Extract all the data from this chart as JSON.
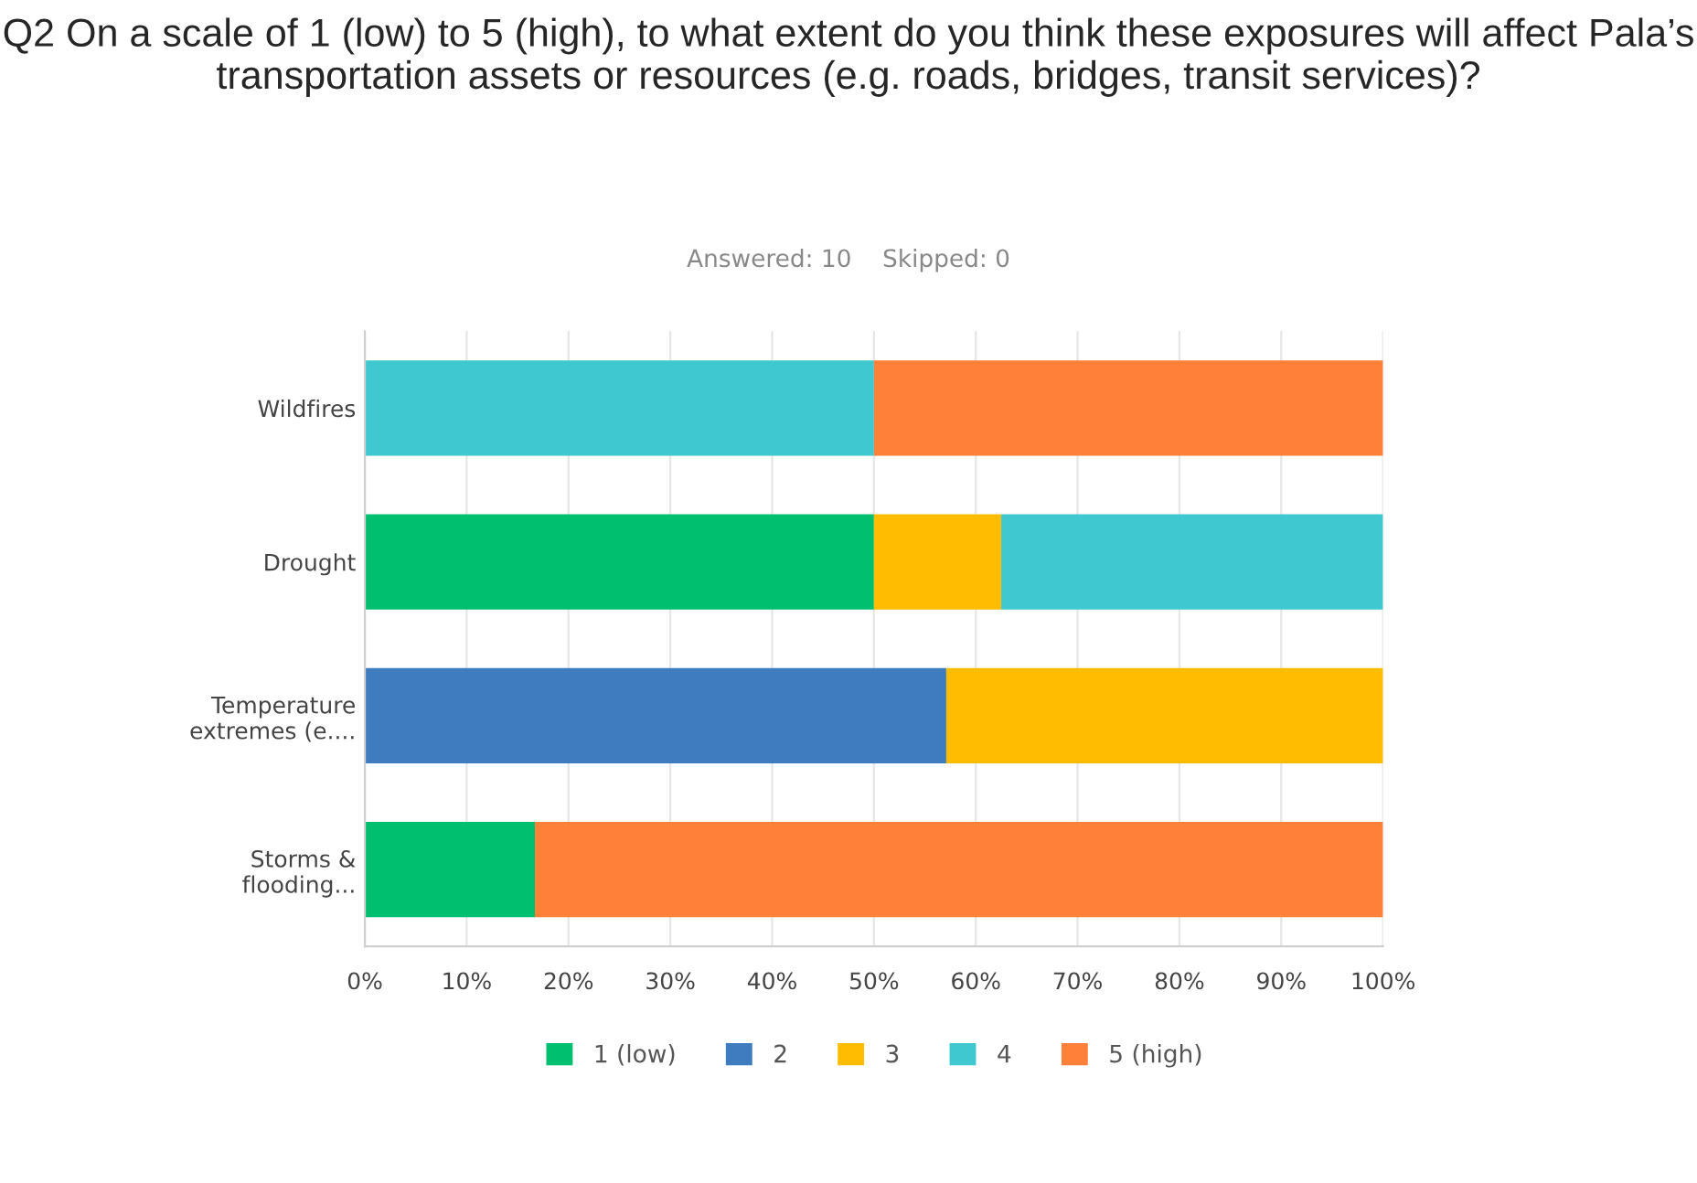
{
  "chart_data": {
    "type": "bar",
    "orientation": "horizontal",
    "stacked": true,
    "title": "Q2 On a scale of 1 (low) to 5 (high), to what extent do you think these exposures will affect Pala’s transportation assets or resources (e.g. roads, bridges, transit services)?",
    "subtitle": "Answered: 10    Skipped: 0",
    "categories": [
      "Wildfires",
      "Drought",
      "Temperature\nextremes (e....",
      "Storms &\nflooding..."
    ],
    "series": [
      {
        "name": "1 (low)",
        "color": "#00bf6f",
        "values": [
          0,
          50,
          0,
          16.7
        ]
      },
      {
        "name": "2",
        "color": "#3e7bbf",
        "values": [
          0,
          0,
          57.1,
          0
        ]
      },
      {
        "name": "3",
        "color": "#ffbc00",
        "values": [
          0,
          12.5,
          42.9,
          0
        ]
      },
      {
        "name": "4",
        "color": "#40c8d0",
        "values": [
          50,
          37.5,
          0,
          0
        ]
      },
      {
        "name": "5 (high)",
        "color": "#ff8039",
        "values": [
          50,
          0,
          0,
          83.3
        ]
      }
    ],
    "xlim": [
      0,
      100
    ],
    "xticks": [
      {
        "value": 0,
        "label": "0%"
      },
      {
        "value": 10,
        "label": "10%"
      },
      {
        "value": 20,
        "label": "20%"
      },
      {
        "value": 30,
        "label": "30%"
      },
      {
        "value": 40,
        "label": "40%"
      },
      {
        "value": 50,
        "label": "50%"
      },
      {
        "value": 60,
        "label": "60%"
      },
      {
        "value": 70,
        "label": "70%"
      },
      {
        "value": 80,
        "label": "80%"
      },
      {
        "value": 90,
        "label": "90%"
      },
      {
        "value": 100,
        "label": "100%"
      }
    ],
    "grid": "x",
    "legend": "bottom"
  }
}
